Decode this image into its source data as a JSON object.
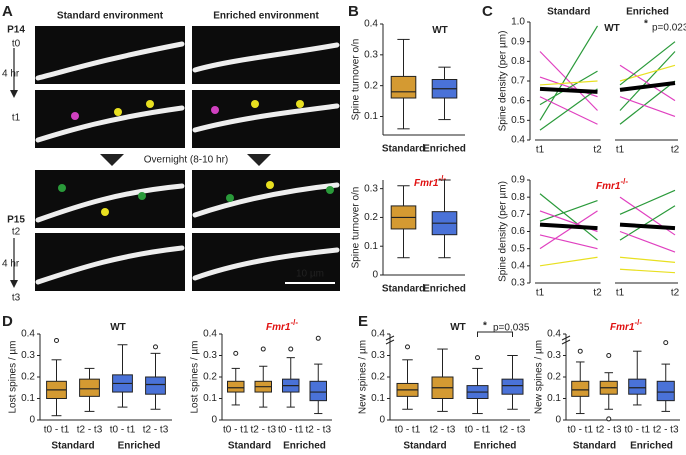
{
  "panel_labels": [
    "A",
    "B",
    "C",
    "D",
    "E"
  ],
  "panel_a": {
    "columns": [
      {
        "text": "Standard environment",
        "color": "#c8922b"
      },
      {
        "text": "Enriched environment",
        "color": "#4a6fd0"
      }
    ],
    "day1": "P14",
    "day2": "P15",
    "interval": "4 hr",
    "times": [
      "t0",
      "t1",
      "t2",
      "t3"
    ],
    "overnight": "Overnight (8-10 hr)",
    "scale_bar": "10 µm"
  },
  "chart_data": [
    {
      "type": "box",
      "title": "WT",
      "ylabel": "Spine turnover o/n",
      "ylim": [
        0.04,
        0.4
      ],
      "yticks": [
        0.1,
        0.2,
        0.3,
        0.4
      ],
      "groups": [
        {
          "name": "Standard",
          "color": "#d49a32"
        },
        {
          "name": "Enriched",
          "color": "#4a72d8"
        }
      ],
      "boxes": [
        {
          "group": 0,
          "min": 0.06,
          "q1": 0.16,
          "median": 0.18,
          "q3": 0.23,
          "max": 0.35,
          "outliers": []
        },
        {
          "group": 1,
          "min": 0.09,
          "q1": 0.16,
          "median": 0.19,
          "q3": 0.22,
          "max": 0.26,
          "outliers": []
        }
      ]
    },
    {
      "type": "box",
      "title": "Fmr1",
      "title_sup": "-/-",
      "ylabel": "Spine turnover o/n",
      "ylim": [
        0,
        0.33
      ],
      "yticks": [
        0,
        0.1,
        0.2,
        0.3
      ],
      "groups": [
        {
          "name": "Standard",
          "color": "#d49a32"
        },
        {
          "name": "Enriched",
          "color": "#4a72d8"
        }
      ],
      "boxes": [
        {
          "group": 0,
          "min": 0.06,
          "q1": 0.16,
          "median": 0.2,
          "q3": 0.24,
          "max": 0.31,
          "outliers": []
        },
        {
          "group": 1,
          "min": 0.06,
          "q1": 0.14,
          "median": 0.18,
          "q3": 0.22,
          "max": 0.33,
          "outliers": []
        }
      ]
    },
    {
      "type": "line",
      "title": "WT",
      "ylabel": "Spine density (per µm)",
      "ylim": [
        0.4,
        1.0
      ],
      "yticks": [
        0.4,
        0.5,
        0.6,
        0.7,
        0.8,
        0.9,
        {
          "value": 1.0,
          "label": "1.0"
        }
      ],
      "annotation": {
        "star": "*",
        "text": "p=0.023"
      },
      "mean_color": "#000000",
      "groups": [
        {
          "name": "Standard",
          "color": "#c8922b",
          "x": [
            "t1",
            "t2"
          ],
          "mean": [
            0.66,
            0.645
          ],
          "lines": [
            {
              "color": "#e040c0",
              "values": [
                0.85,
                0.55
              ]
            },
            {
              "color": "#2a9a3a",
              "values": [
                0.5,
                0.98
              ]
            },
            {
              "color": "#e040c0",
              "values": [
                0.72,
                0.62
              ]
            },
            {
              "color": "#2a9a3a",
              "values": [
                0.58,
                0.75
              ]
            },
            {
              "color": "#e8e020",
              "values": [
                0.68,
                0.7
              ]
            },
            {
              "color": "#e040c0",
              "values": [
                0.62,
                0.48
              ]
            },
            {
              "color": "#2a9a3a",
              "values": [
                0.45,
                0.66
              ]
            }
          ]
        },
        {
          "name": "Enriched",
          "color": "#4a6fd0",
          "x": [
            "t1",
            "t2"
          ],
          "mean": [
            0.655,
            0.69
          ],
          "lines": [
            {
              "color": "#2a9a3a",
              "values": [
                0.55,
                0.85
              ]
            },
            {
              "color": "#e040c0",
              "values": [
                0.78,
                0.6
              ]
            },
            {
              "color": "#e8e020",
              "values": [
                0.7,
                0.78
              ]
            },
            {
              "color": "#2a9a3a",
              "values": [
                0.48,
                0.7
              ]
            },
            {
              "color": "#e040c0",
              "values": [
                0.62,
                0.52
              ]
            },
            {
              "color": "#2a9a3a",
              "values": [
                0.68,
                0.9
              ]
            }
          ]
        }
      ]
    },
    {
      "type": "line",
      "title": "Fmr1",
      "title_sup": "-/-",
      "ylabel": "Spine density (per µm)",
      "ylim": [
        0.3,
        0.9
      ],
      "yticks": [
        0.3,
        0.4,
        0.5,
        0.6,
        0.7,
        0.8,
        0.9
      ],
      "mean_color": "#000000",
      "groups": [
        {
          "x": [
            "t1",
            "t2"
          ],
          "mean": [
            0.64,
            0.62
          ],
          "lines": [
            {
              "color": "#2a9a3a",
              "values": [
                0.82,
                0.55
              ]
            },
            {
              "color": "#e040c0",
              "values": [
                0.5,
                0.72
              ]
            },
            {
              "color": "#e8e020",
              "values": [
                0.4,
                0.45
              ]
            },
            {
              "color": "#2a9a3a",
              "values": [
                0.66,
                0.78
              ]
            },
            {
              "color": "#e040c0",
              "values": [
                0.72,
                0.6
              ]
            },
            {
              "color": "#e040c0",
              "values": [
                0.58,
                0.5
              ]
            }
          ]
        },
        {
          "x": [
            "t1",
            "t2"
          ],
          "mean": [
            0.64,
            0.62
          ],
          "lines": [
            {
              "color": "#e040c0",
              "values": [
                0.8,
                0.58
              ]
            },
            {
              "color": "#2a9a3a",
              "values": [
                0.55,
                0.75
              ]
            },
            {
              "color": "#e8e020",
              "values": [
                0.38,
                0.36
              ]
            },
            {
              "color": "#2a9a3a",
              "values": [
                0.7,
                0.84
              ]
            },
            {
              "color": "#e040c0",
              "values": [
                0.6,
                0.48
              ]
            },
            {
              "color": "#e8e020",
              "values": [
                0.45,
                0.42
              ]
            }
          ]
        }
      ]
    },
    {
      "type": "box",
      "title": "WT",
      "ylabel": "Lost spines / µm",
      "ylim": [
        0,
        0.4
      ],
      "yticks": [
        0,
        0.1,
        0.2,
        0.3,
        0.4
      ],
      "groups": [
        {
          "name": "Standard",
          "color": "#d49a32"
        },
        {
          "name": "Enriched",
          "color": "#4a72d8"
        }
      ],
      "boxes": [
        {
          "group": 0,
          "category": "t0 - t1",
          "min": 0.02,
          "q1": 0.1,
          "median": 0.14,
          "q3": 0.18,
          "max": 0.28,
          "outliers": [
            0.37
          ]
        },
        {
          "group": 0,
          "category": "t2 - t3",
          "min": 0.04,
          "q1": 0.11,
          "median": 0.145,
          "q3": 0.19,
          "max": 0.24,
          "outliers": []
        },
        {
          "group": 1,
          "category": "t0 - t1",
          "min": 0.06,
          "q1": 0.13,
          "median": 0.17,
          "q3": 0.21,
          "max": 0.35,
          "outliers": []
        },
        {
          "group": 1,
          "category": "t2 - t3",
          "min": 0.05,
          "q1": 0.12,
          "median": 0.165,
          "q3": 0.2,
          "max": 0.31,
          "outliers": [
            0.34
          ]
        }
      ]
    },
    {
      "type": "box",
      "title": "Fmr1",
      "title_sup": "-/-",
      "ylabel": "Lost spines / µm",
      "ylim": [
        0,
        0.4
      ],
      "yticks": [
        0,
        0.1,
        0.2,
        0.3,
        0.4
      ],
      "groups": [
        {
          "name": "Standard",
          "color": "#d49a32"
        },
        {
          "name": "Enriched",
          "color": "#4a72d8"
        }
      ],
      "boxes": [
        {
          "group": 0,
          "category": "t0 - t1",
          "min": 0.07,
          "q1": 0.13,
          "median": 0.15,
          "q3": 0.18,
          "max": 0.24,
          "outliers": [
            0.31
          ]
        },
        {
          "group": 0,
          "category": "t2 - t3",
          "min": 0.06,
          "q1": 0.13,
          "median": 0.155,
          "q3": 0.18,
          "max": 0.25,
          "outliers": [
            0.33
          ]
        },
        {
          "group": 1,
          "category": "t0 - t1",
          "min": 0.06,
          "q1": 0.13,
          "median": 0.16,
          "q3": 0.19,
          "max": 0.29,
          "outliers": [
            0.33
          ]
        },
        {
          "group": 1,
          "category": "t2 - t3",
          "min": 0.03,
          "q1": 0.09,
          "median": 0.13,
          "q3": 0.18,
          "max": 0.26,
          "outliers": [
            0.38
          ]
        }
      ]
    },
    {
      "type": "box",
      "title": "WT",
      "ylabel": "New spines / µm",
      "ylim": [
        0,
        0.4
      ],
      "yticks": [
        0,
        0.1,
        0.2,
        0.3,
        0.4
      ],
      "axis_break": true,
      "annotation": {
        "star": "*",
        "text": "p=0.035",
        "between": [
          2,
          3
        ]
      },
      "groups": [
        {
          "name": "Standard",
          "color": "#d49a32"
        },
        {
          "name": "Enriched",
          "color": "#4a72d8"
        }
      ],
      "boxes": [
        {
          "group": 0,
          "category": "t0 - t1",
          "min": 0.05,
          "q1": 0.11,
          "median": 0.14,
          "q3": 0.17,
          "max": 0.28,
          "outliers": [
            0.34
          ]
        },
        {
          "group": 0,
          "category": "t2 - t3",
          "min": 0.04,
          "q1": 0.1,
          "median": 0.15,
          "q3": 0.2,
          "max": 0.33,
          "outliers": []
        },
        {
          "group": 1,
          "category": "t0 - t1",
          "min": 0.03,
          "q1": 0.1,
          "median": 0.13,
          "q3": 0.16,
          "max": 0.24,
          "outliers": [
            0.29
          ]
        },
        {
          "group": 1,
          "category": "t2 - t3",
          "min": 0.05,
          "q1": 0.12,
          "median": 0.16,
          "q3": 0.19,
          "max": 0.3,
          "outliers": []
        }
      ]
    },
    {
      "type": "box",
      "title": "Fmr1",
      "title_sup": "-/-",
      "ylabel": "New spines / µm",
      "ylim": [
        0,
        0.4
      ],
      "yticks": [
        0,
        0.1,
        0.2,
        0.3,
        0.4
      ],
      "axis_break": true,
      "groups": [
        {
          "name": "Standard",
          "color": "#d49a32"
        },
        {
          "name": "Enriched",
          "color": "#4a72d8"
        }
      ],
      "boxes": [
        {
          "group": 0,
          "category": "t0 - t1",
          "min": 0.03,
          "q1": 0.11,
          "median": 0.14,
          "q3": 0.18,
          "max": 0.27,
          "outliers": [
            0.32
          ]
        },
        {
          "group": 0,
          "category": "t2 - t3",
          "min": 0.05,
          "q1": 0.12,
          "median": 0.15,
          "q3": 0.18,
          "max": 0.22,
          "outliers": [
            0.3,
            0.005
          ]
        },
        {
          "group": 1,
          "category": "t0 - t1",
          "min": 0.07,
          "q1": 0.12,
          "median": 0.15,
          "q3": 0.19,
          "max": 0.32,
          "outliers": []
        },
        {
          "group": 1,
          "category": "t2 - t3",
          "min": 0.04,
          "q1": 0.09,
          "median": 0.13,
          "q3": 0.18,
          "max": 0.26,
          "outliers": [
            0.36
          ]
        }
      ]
    }
  ]
}
